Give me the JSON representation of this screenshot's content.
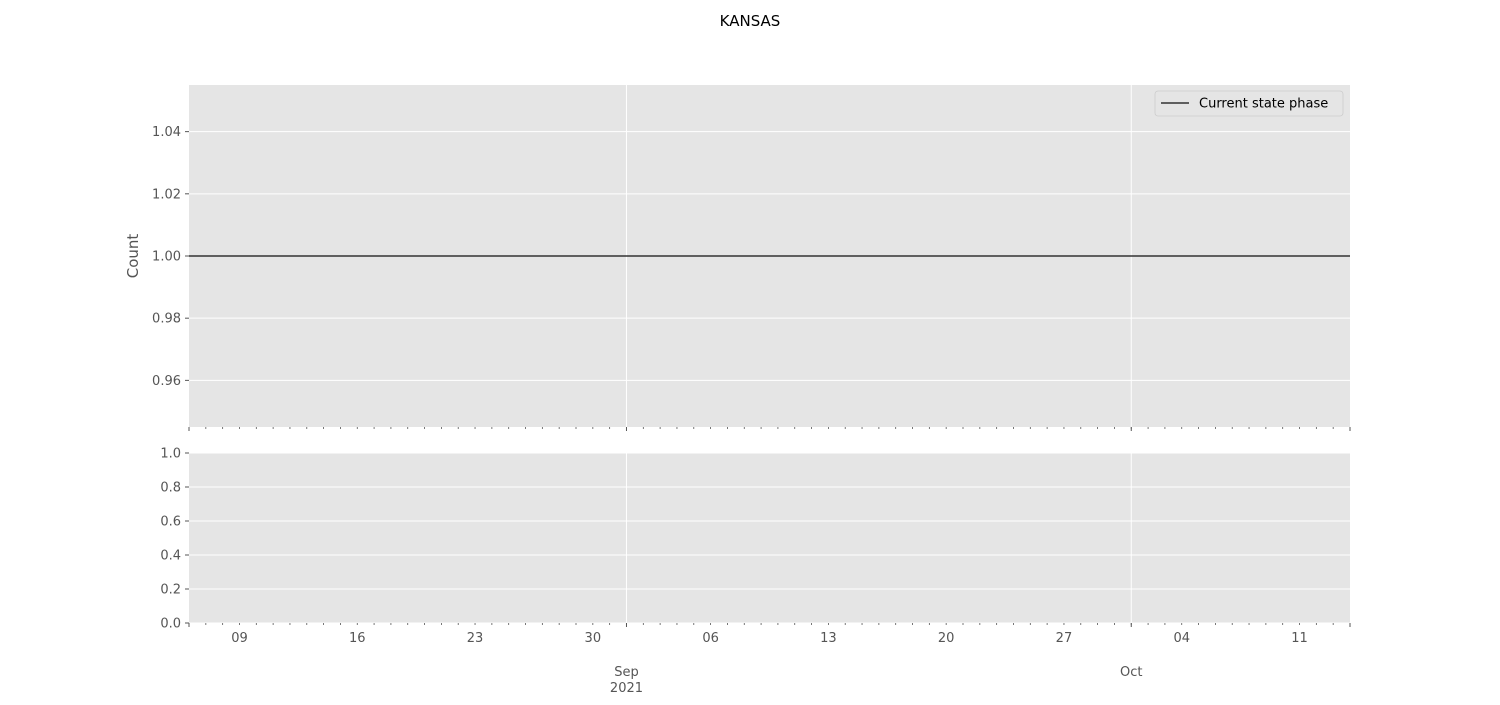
{
  "figure": {
    "title": "KANSAS",
    "background": "#ffffff",
    "axes_facecolor": "#e5e5e5",
    "grid_color": "#ffffff",
    "tick_color": "#555555"
  },
  "chart_data": [
    {
      "type": "line",
      "title": "",
      "xlabel": "",
      "ylabel": "Count",
      "xlim": [
        "2021-08-06",
        "2021-10-14"
      ],
      "ylim": [
        0.945,
        1.055
      ],
      "yticks": [
        0.96,
        0.98,
        1.0,
        1.02,
        1.04
      ],
      "ytick_labels": [
        "0.96",
        "0.98",
        "1.00",
        "1.02",
        "1.04"
      ],
      "grid": true,
      "legend": {
        "placement": "top-right"
      },
      "series": [
        {
          "name": "Current state phase",
          "color": "#333333",
          "x": [
            "2021-08-06",
            "2021-10-14"
          ],
          "y": [
            1.0,
            1.0
          ]
        }
      ]
    },
    {
      "type": "line",
      "title": "",
      "xlabel": "",
      "ylabel": "",
      "xlim": [
        "2021-08-06",
        "2021-10-14"
      ],
      "ylim": [
        0.0,
        1.0
      ],
      "yticks": [
        0.0,
        0.2,
        0.4,
        0.6,
        0.8,
        1.0
      ],
      "ytick_labels": [
        "0.0",
        "0.2",
        "0.4",
        "0.6",
        "0.8",
        "1.0"
      ],
      "grid": true,
      "series": []
    }
  ],
  "shared_xaxis": {
    "major_ticks": [
      {
        "date": "2021-08-09",
        "label": "09"
      },
      {
        "date": "2021-08-16",
        "label": "16"
      },
      {
        "date": "2021-08-23",
        "label": "23"
      },
      {
        "date": "2021-08-30",
        "label": "30"
      },
      {
        "date": "2021-09-06",
        "label": "06"
      },
      {
        "date": "2021-09-13",
        "label": "13"
      },
      {
        "date": "2021-09-20",
        "label": "20"
      },
      {
        "date": "2021-09-27",
        "label": "27"
      },
      {
        "date": "2021-10-04",
        "label": "04"
      },
      {
        "date": "2021-10-11",
        "label": "11"
      }
    ],
    "month_ticks": [
      {
        "date": "2021-09-01",
        "label": "Sep",
        "sublabel": "2021"
      },
      {
        "date": "2021-10-01",
        "label": "Oct",
        "sublabel": ""
      }
    ],
    "minor_tick_interval_days": 1
  }
}
